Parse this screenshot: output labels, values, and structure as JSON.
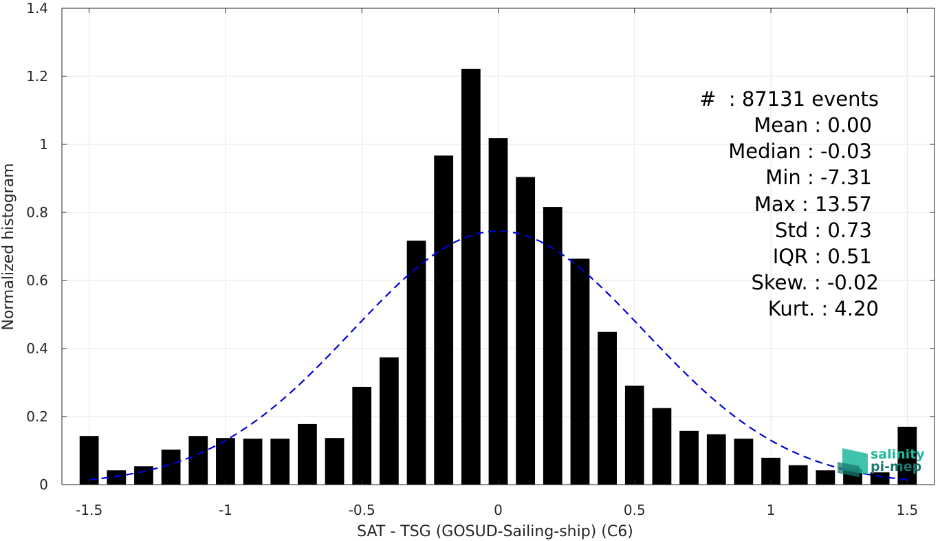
{
  "chart_data": {
    "type": "bar",
    "xlabel": "SAT - TSG (GOSUD-Sailing-ship) (C6)",
    "ylabel": "Normalized histogram",
    "xlim": [
      -1.6,
      1.6
    ],
    "ylim": [
      0,
      1.4
    ],
    "grid": true,
    "xticks": [
      -1.5,
      -1,
      -0.5,
      0,
      0.5,
      1,
      1.5
    ],
    "xtick_labels": [
      "-1.5",
      "-1",
      "-0.5",
      "0",
      "0.5",
      "1",
      "1.5"
    ],
    "yticks": [
      0,
      0.2,
      0.4,
      0.6,
      0.8,
      1,
      1.2,
      1.4
    ],
    "ytick_labels": [
      "0",
      "0.2",
      "0.4",
      "0.6",
      "0.8",
      "1",
      "1.2",
      "1.4"
    ],
    "bar_color": "#000000",
    "bin_width": 0.1,
    "bins": [
      {
        "x": -1.5,
        "y": 0.143
      },
      {
        "x": -1.4,
        "y": 0.042
      },
      {
        "x": -1.3,
        "y": 0.054
      },
      {
        "x": -1.2,
        "y": 0.103
      },
      {
        "x": -1.1,
        "y": 0.143
      },
      {
        "x": -1.0,
        "y": 0.137
      },
      {
        "x": -0.9,
        "y": 0.135
      },
      {
        "x": -0.8,
        "y": 0.135
      },
      {
        "x": -0.7,
        "y": 0.178
      },
      {
        "x": -0.6,
        "y": 0.137
      },
      {
        "x": -0.5,
        "y": 0.287
      },
      {
        "x": -0.4,
        "y": 0.374
      },
      {
        "x": -0.3,
        "y": 0.717
      },
      {
        "x": -0.2,
        "y": 0.967
      },
      {
        "x": -0.1,
        "y": 1.222
      },
      {
        "x": 0.0,
        "y": 1.018
      },
      {
        "x": 0.1,
        "y": 0.904
      },
      {
        "x": 0.2,
        "y": 0.816
      },
      {
        "x": 0.3,
        "y": 0.664
      },
      {
        "x": 0.4,
        "y": 0.449
      },
      {
        "x": 0.5,
        "y": 0.291
      },
      {
        "x": 0.6,
        "y": 0.225
      },
      {
        "x": 0.7,
        "y": 0.158
      },
      {
        "x": 0.8,
        "y": 0.148
      },
      {
        "x": 0.9,
        "y": 0.135
      },
      {
        "x": 1.0,
        "y": 0.079
      },
      {
        "x": 1.1,
        "y": 0.057
      },
      {
        "x": 1.2,
        "y": 0.042
      },
      {
        "x": 1.3,
        "y": 0.047
      },
      {
        "x": 1.4,
        "y": 0.036
      },
      {
        "x": 1.5,
        "y": 0.17
      }
    ],
    "fit_curve": {
      "type": "gaussian",
      "mean": 0.0,
      "std": 0.535,
      "peak": 0.745,
      "x_range": [
        -1.5,
        1.5
      ],
      "color": "#0000dd",
      "style": "dashed"
    }
  },
  "stats": {
    "color": "#000000",
    "lines": [
      "#  : 87131 events",
      "Mean : 0.00",
      "Median : -0.03",
      "Min : -7.31",
      "Max : 13.57",
      "Std : 0.73",
      "IQR : 0.51",
      "Skew. : -0.02",
      "Kurt. : 4.20"
    ]
  },
  "logo": {
    "line1": "salinity",
    "line2": "pi-mep",
    "color1": "#1fb89c",
    "color2": "#177a6e"
  }
}
